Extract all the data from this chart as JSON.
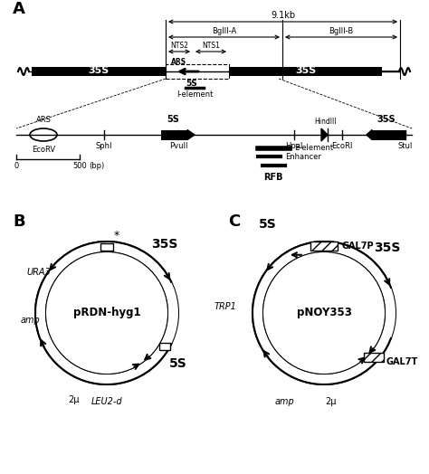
{
  "bg_color": "#ffffff",
  "title_A": "A",
  "title_B": "B",
  "title_C": "C",
  "label_9_1kb": "9.1kb",
  "label_BglIIA": "BglII-A",
  "label_BglIIB": "BglII-B",
  "label_NTS2": "NTS2",
  "label_NTS1": "NTS1",
  "label_35S_left": "35S",
  "label_35S_right": "35S",
  "label_5S": "5S",
  "label_ARS": "ARS",
  "label_Ielement": "I-element",
  "label_EcoRV": "EcoRV",
  "label_SphI": "SphI",
  "label_PvuII": "PvuII",
  "label_HpaI": "HpaI",
  "label_HindIII": "HindIII",
  "label_EcoRI": "EcoRI",
  "label_StuI": "StuI",
  "label_ARS2": "ARS",
  "label_5S2": "5S",
  "label_35S3": "35S",
  "label_0": "0",
  "label_500": "500",
  "label_bp": "(bp)",
  "label_Eelement": "E-element",
  "label_Enhancer": "Enhancer",
  "label_RFB": "RFB",
  "plasmid_B": "pRDN-hyg1",
  "plasmid_C": "pNOY353",
  "label_URA3": "URA3",
  "label_amp_B": "amp",
  "label_2mu_B": "2μ",
  "label_LEU2d": "LEU2-d",
  "label_35S_B": "35S",
  "label_5S_B": "5S",
  "label_TRP1": "TRP1",
  "label_amp_C": "amp",
  "label_2mu_C": "2μ",
  "label_35S_C": "35S",
  "label_5S_C": "5S",
  "label_GAL7P": "GAL7P",
  "label_GAL7T": "GAL7T"
}
